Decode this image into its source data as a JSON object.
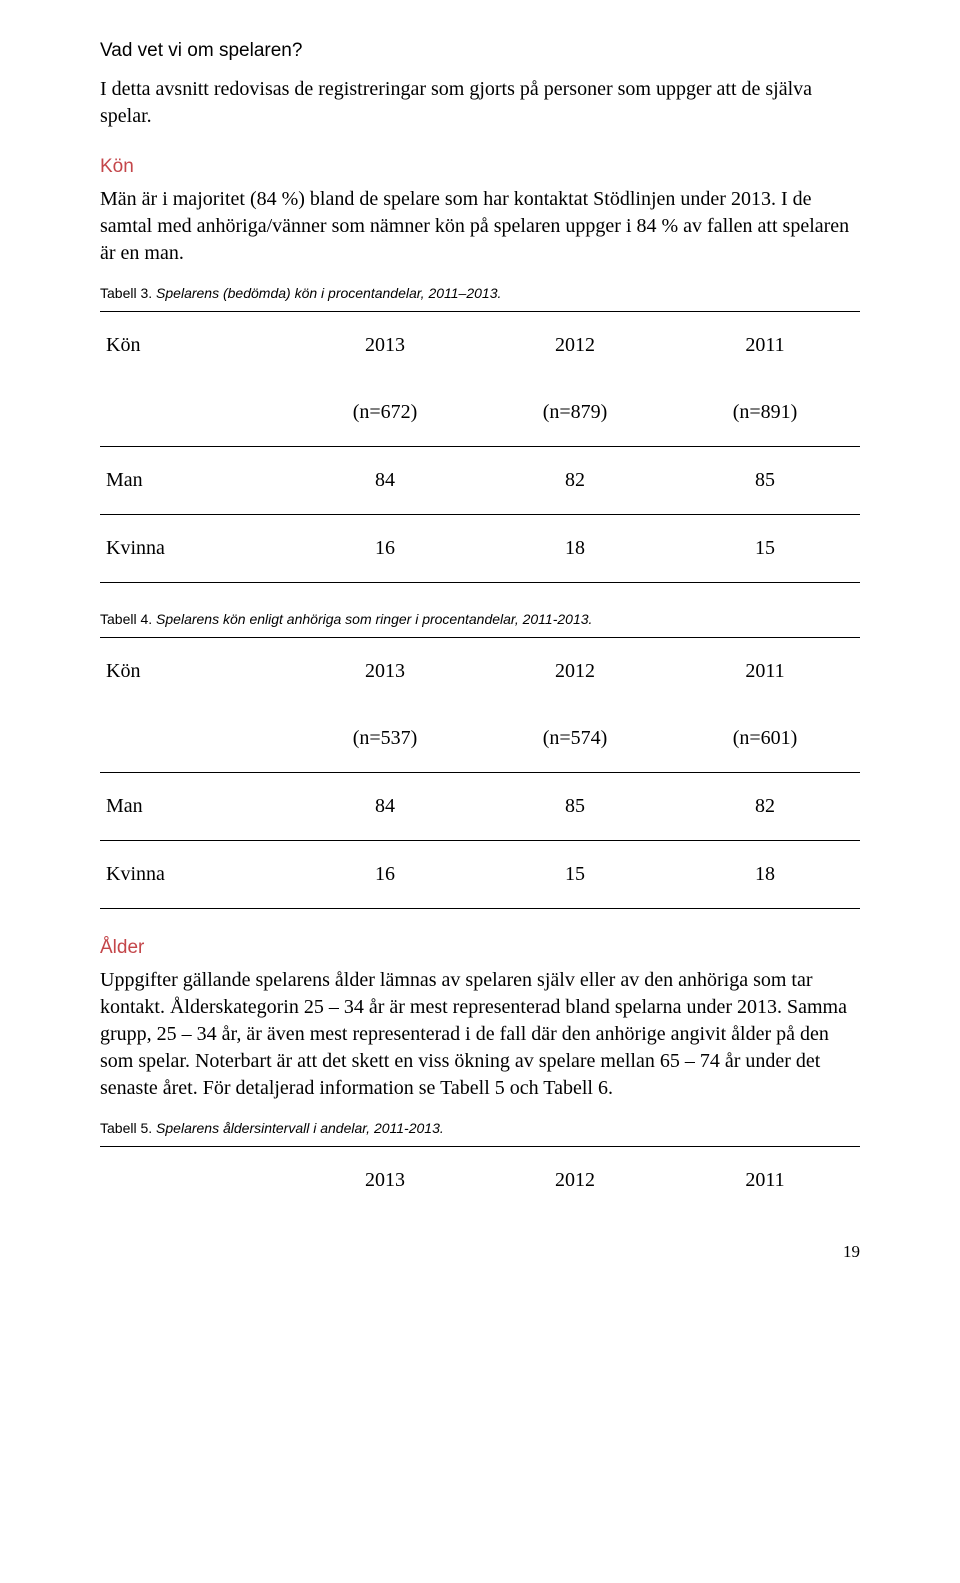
{
  "headings": {
    "section": "Vad vet vi om spelaren?",
    "kon": "Kön",
    "alder": "Ålder"
  },
  "paragraphs": {
    "intro": "I detta avsnitt redovisas de registreringar som gjorts på personer som uppger att de själva spelar.",
    "kon": "Män är i majoritet (84 %) bland de spelare som har kontaktat Stödlinjen under 2013. I de samtal med anhöriga/vänner som nämner kön på spelaren uppger i 84 % av fallen att spelaren är en man.",
    "alder": "Uppgifter gällande spelarens ålder lämnas av spelaren själv eller av den anhöriga som tar kontakt. Ålderskategorin 25 – 34 år är mest representerad bland spelarna under 2013. Samma grupp, 25 – 34 år, är även mest representerad i de fall där den anhörige angivit ålder på den som spelar. Noterbart är att det skett en viss ökning av spelare mellan 65 – 74 år under det senaste året. För detaljerad information se Tabell 5 och Tabell 6."
  },
  "captions": {
    "t3_label": "Tabell 3.",
    "t3_text": "Spelarens (bedömda) kön i procentandelar, 2011–2013.",
    "t4_label": "Tabell 4.",
    "t4_text": "Spelarens kön enligt anhöriga som ringer i procentandelar, 2011-2013.",
    "t5_label": "Tabell 5.",
    "t5_text": "Spelarens åldersintervall i andelar, 2011-2013."
  },
  "table3": {
    "head_label": "Kön",
    "years": [
      "2013",
      "2012",
      "2011"
    ],
    "n": [
      "(n=672)",
      "(n=879)",
      "(n=891)"
    ],
    "rows": [
      {
        "label": "Man",
        "v": [
          "84",
          "82",
          "85"
        ]
      },
      {
        "label": "Kvinna",
        "v": [
          "16",
          "18",
          "15"
        ]
      }
    ]
  },
  "table4": {
    "head_label": "Kön",
    "years": [
      "2013",
      "2012",
      "2011"
    ],
    "n": [
      "(n=537)",
      "(n=574)",
      "(n=601)"
    ],
    "rows": [
      {
        "label": "Man",
        "v": [
          "84",
          "85",
          "82"
        ]
      },
      {
        "label": "Kvinna",
        "v": [
          "16",
          "15",
          "18"
        ]
      }
    ]
  },
  "table5": {
    "years": [
      "2013",
      "2012",
      "2011"
    ]
  },
  "page_number": "19"
}
